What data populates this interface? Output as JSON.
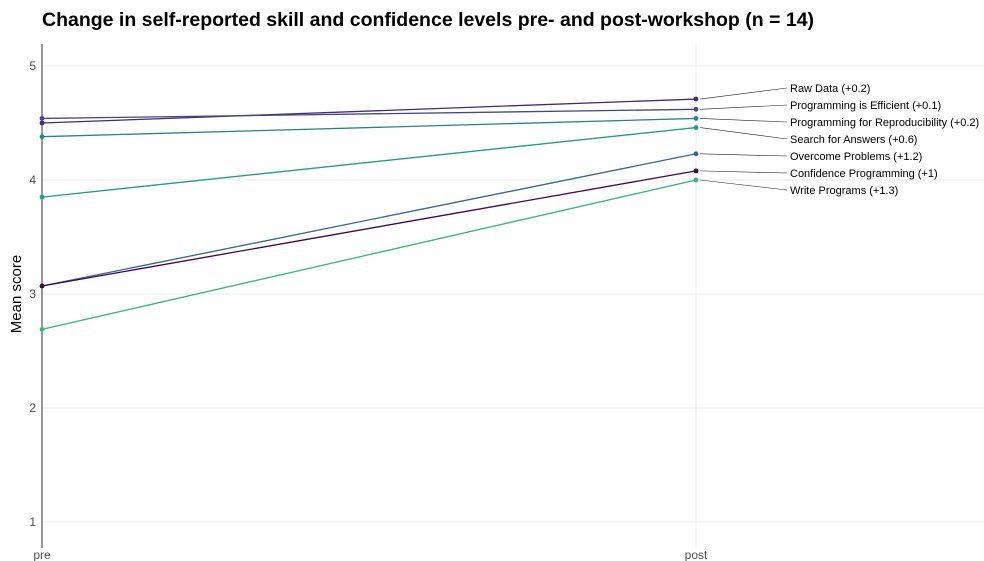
{
  "chart_data": {
    "type": "line",
    "title": "Change in self-reported skill and confidence levels pre- and post-workshop (n = 14)",
    "xlabel": "",
    "ylabel": "Mean score",
    "categories": [
      "pre",
      "post"
    ],
    "ylim": [
      1,
      5
    ],
    "yticks": [
      1,
      2,
      3,
      4,
      5
    ],
    "grid": true,
    "legend": "direct-labels-right",
    "series": [
      {
        "name": "Raw Data (+0.2)",
        "values": [
          4.5,
          4.71
        ],
        "color": "#482878"
      },
      {
        "name": "Programming is Efficient (+0.1)",
        "values": [
          4.54,
          4.62
        ],
        "color": "#3e4a89"
      },
      {
        "name": "Programming for Reproducibility (+0.2)",
        "values": [
          4.38,
          4.54
        ],
        "color": "#26828e"
      },
      {
        "name": "Search for Answers (+0.6)",
        "values": [
          3.85,
          4.46
        ],
        "color": "#1f9e89"
      },
      {
        "name": "Overcome Problems (+1.2)",
        "values": [
          3.07,
          4.23
        ],
        "color": "#31688e"
      },
      {
        "name": "Confidence Programming (+1)",
        "values": [
          3.07,
          4.08
        ],
        "color": "#440154"
      },
      {
        "name": "Write Programs (+1.3)",
        "values": [
          2.69,
          4.0
        ],
        "color": "#35b779"
      }
    ]
  }
}
